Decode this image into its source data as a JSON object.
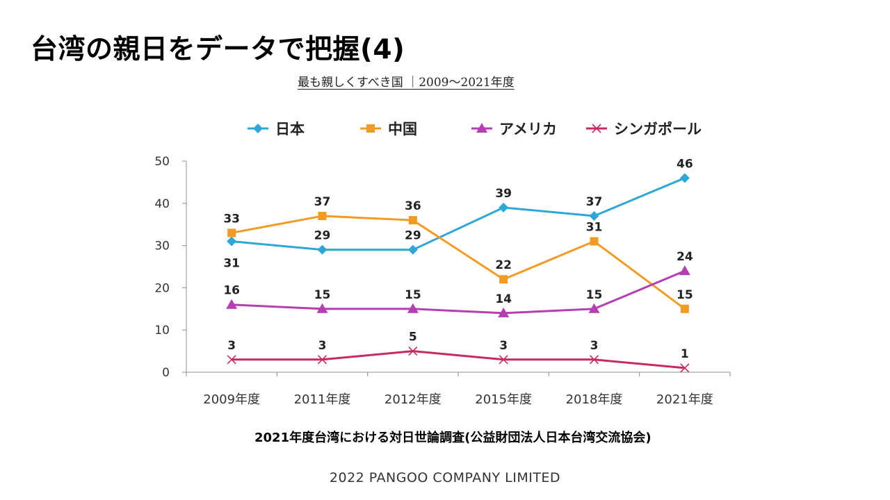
{
  "slide": {
    "title": "台湾の親日をデータで把握(4)",
    "source_note": "2021年度台湾における対日世論調査(公益財団法人日本台湾交流協会)",
    "footer": "2022 PANGOO COMPANY LIMITED"
  },
  "chart_data": {
    "type": "line",
    "title": "最も親しくすべき国 ｜2009～2021年度",
    "categories": [
      "2009年度",
      "2011年度",
      "2012年度",
      "2015年度",
      "2018年度",
      "2021年度"
    ],
    "ylim": [
      0,
      50
    ],
    "yticks": [
      0,
      10,
      20,
      30,
      40,
      50
    ],
    "grid": false,
    "legend_position": "top",
    "series": [
      {
        "name": "日本",
        "values": [
          31,
          29,
          29,
          39,
          37,
          46
        ],
        "color": "#2ea7d8",
        "marker": "diamond"
      },
      {
        "name": "中国",
        "values": [
          33,
          37,
          36,
          22,
          31,
          15
        ],
        "color": "#f39a23",
        "marker": "square"
      },
      {
        "name": "アメリカ",
        "values": [
          16,
          15,
          15,
          14,
          15,
          24
        ],
        "color": "#b63db3",
        "marker": "triangle"
      },
      {
        "name": "シンガポール",
        "values": [
          3,
          3,
          5,
          3,
          3,
          1
        ],
        "color": "#c72a5e",
        "marker": "cross"
      }
    ]
  }
}
